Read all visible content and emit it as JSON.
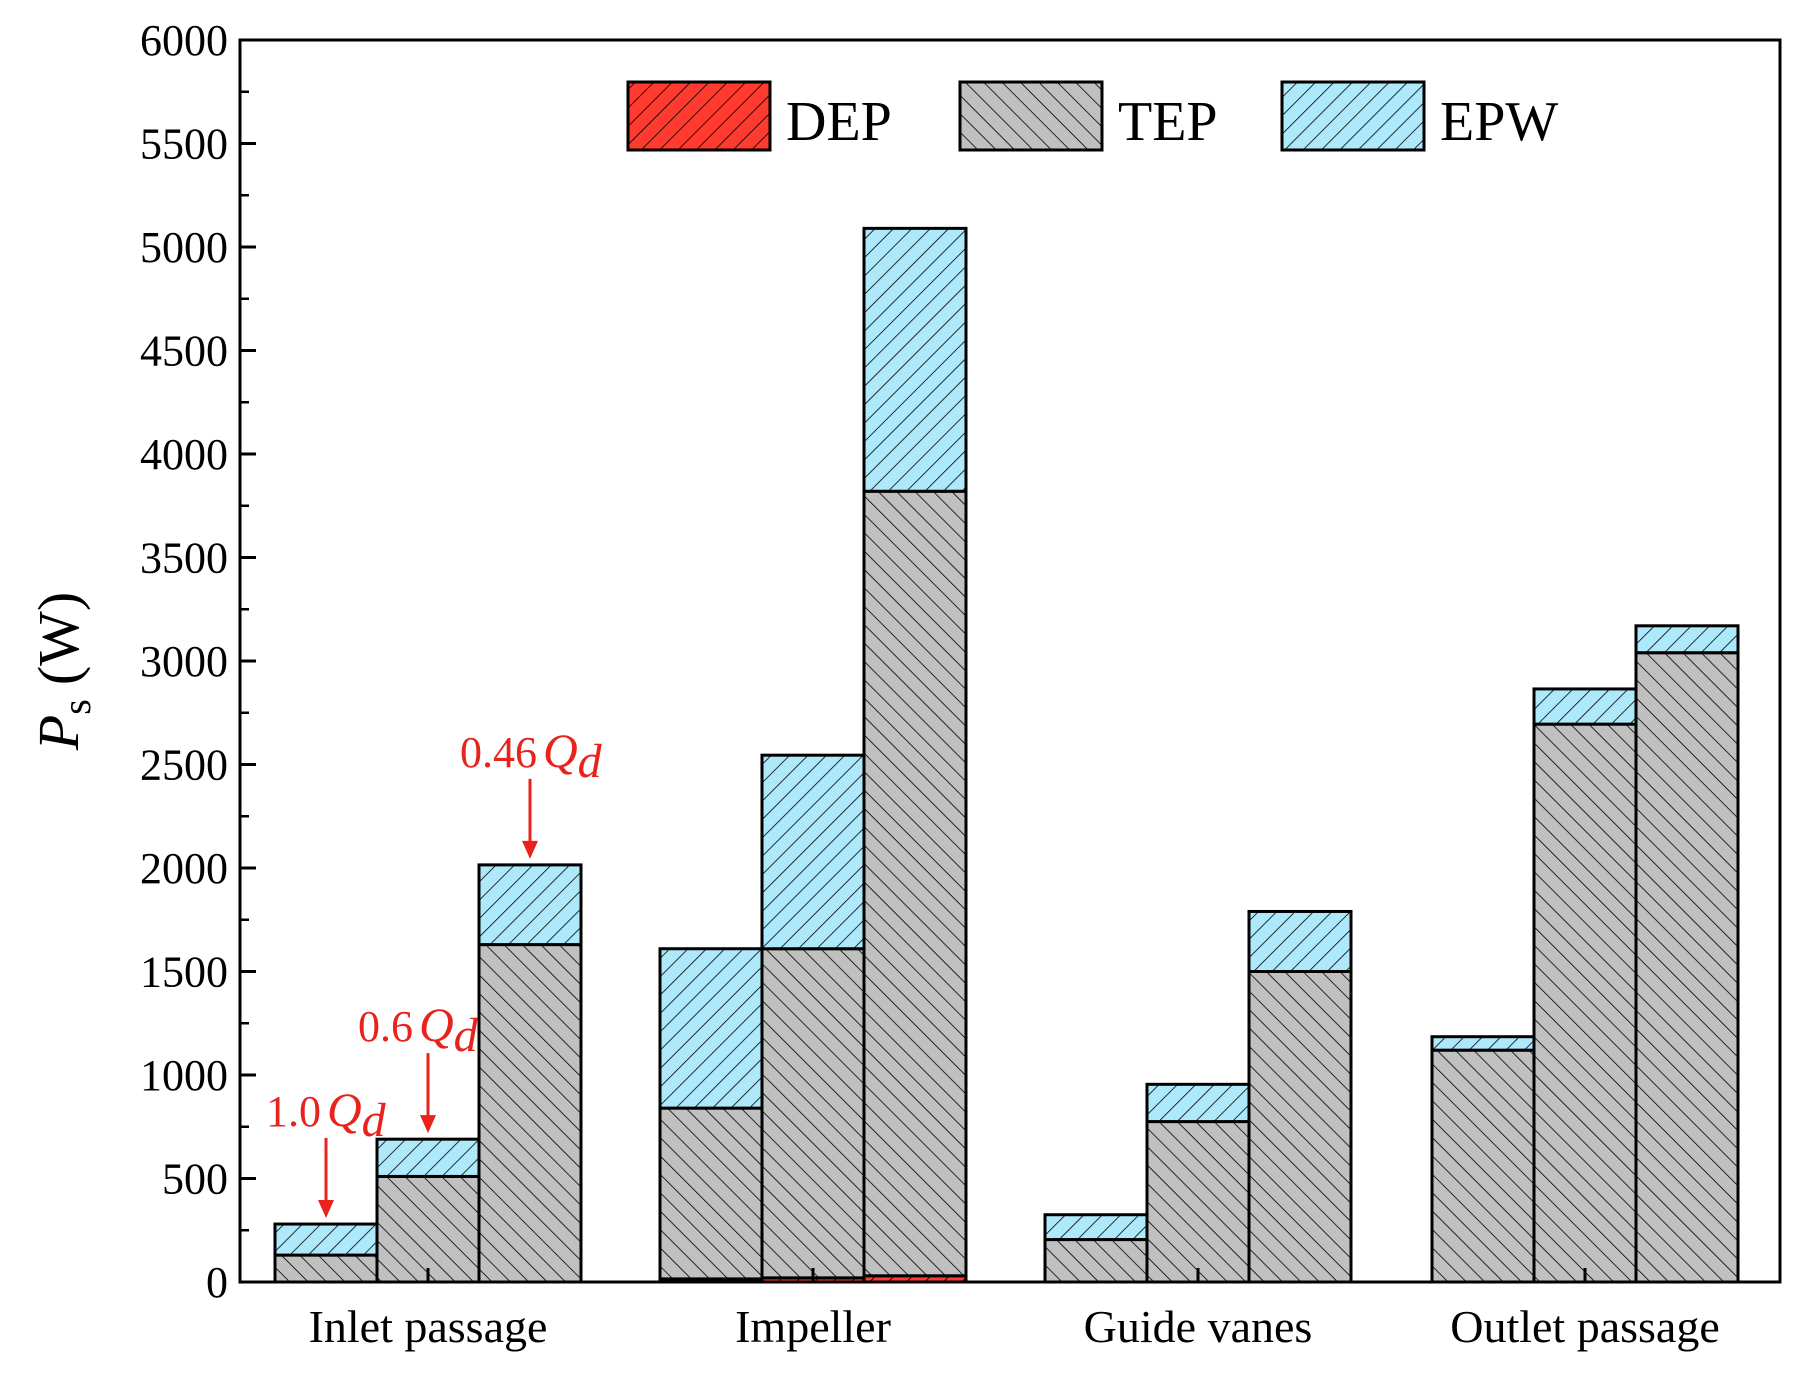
{
  "chart_data": {
    "type": "bar",
    "stacked": true,
    "ylabel_main": "P",
    "ylabel_sub": "s",
    "ylabel_unit": "(W)",
    "ylim": [
      0,
      6000
    ],
    "yticks": [
      0,
      500,
      1000,
      1500,
      2000,
      2500,
      3000,
      3500,
      4000,
      4500,
      5000,
      5500,
      6000
    ],
    "categories": [
      "Inlet passage",
      "Impeller",
      "Guide vanes",
      "Outlet passage"
    ],
    "conditions": [
      "1.0Qd",
      "0.6Qd",
      "0.46Qd"
    ],
    "series": [
      {
        "name": "DEP",
        "color": "#ff3b30",
        "values": [
          [
            0,
            0,
            0
          ],
          [
            15,
            20,
            30
          ],
          [
            0,
            0,
            0
          ],
          [
            0,
            0,
            0
          ]
        ]
      },
      {
        "name": "TEP",
        "color": "#c0c0c0",
        "values": [
          [
            130,
            510,
            1630
          ],
          [
            825,
            1590,
            3790
          ],
          [
            205,
            775,
            1500
          ],
          [
            1120,
            2695,
            3040
          ]
        ]
      },
      {
        "name": "EPW",
        "color": "#aee8fb",
        "values": [
          [
            150,
            180,
            385
          ],
          [
            770,
            935,
            1270
          ],
          [
            120,
            180,
            290
          ],
          [
            65,
            170,
            130
          ]
        ]
      }
    ],
    "legend_position": "top",
    "annotations": [
      {
        "num": "1.0",
        "q": "Q",
        "sub": "d",
        "category": "Inlet passage",
        "condition": "1.0Qd"
      },
      {
        "num": "0.6",
        "q": "Q",
        "sub": "d",
        "category": "Inlet passage",
        "condition": "0.6Qd"
      },
      {
        "num": "0.46",
        "q": "Q",
        "sub": "d",
        "category": "Inlet passage",
        "condition": "0.46Qd"
      }
    ],
    "annotation_color": "#e8231d"
  }
}
